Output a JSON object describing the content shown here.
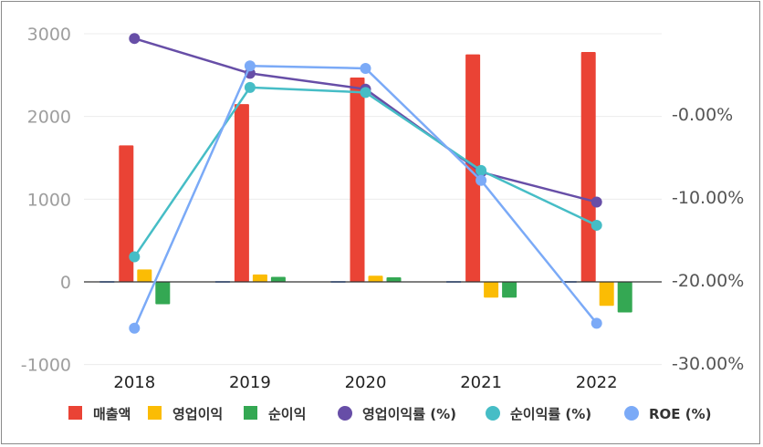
{
  "chart_data": {
    "type": "bar+line",
    "categories": [
      "2018",
      "2019",
      "2020",
      "2021",
      "2022"
    ],
    "left_axis": {
      "ylim": [
        -1000,
        3000
      ],
      "ticks": [
        "3000",
        "2000",
        "1000",
        "0",
        "-1000"
      ],
      "tick_values": [
        3000,
        2000,
        1000,
        0,
        -1000
      ]
    },
    "right_axis": {
      "ylim": [
        -30,
        0
      ],
      "ticks": [
        "-0.00%",
        "-10.00%",
        "-20.00%",
        "-30.00%"
      ],
      "tick_values": [
        0,
        -10,
        -20,
        -30
      ]
    },
    "bar_series": [
      {
        "name": "매출액",
        "color": "#ea4335",
        "values": [
          1650,
          2150,
          2470,
          2750,
          2780
        ]
      },
      {
        "name": "영업이익",
        "color": "#fbbc04",
        "values": [
          150,
          90,
          75,
          -190,
          -290
        ]
      },
      {
        "name": "순이익",
        "color": "#34a853",
        "values": [
          -270,
          60,
          55,
          -190,
          -370
        ]
      }
    ],
    "line_series": [
      {
        "name": "영업이익률 (%)",
        "color": "#674ea7",
        "values": [
          9.1,
          4.9,
          3.0,
          -7.0,
          -10.6
        ]
      },
      {
        "name": "순이익률 (%)",
        "color": "#46bdc6",
        "values": [
          -17.2,
          3.2,
          2.6,
          -6.8,
          -13.4
        ]
      },
      {
        "name": "ROE (%)",
        "color": "#7baaf7",
        "values": [
          -25.8,
          5.8,
          5.5,
          -8.0,
          -25.2
        ]
      }
    ],
    "legend_position": "bottom",
    "grid": true
  }
}
